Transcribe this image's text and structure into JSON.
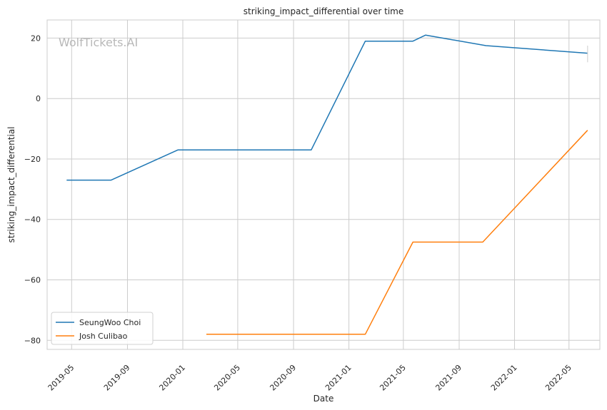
{
  "chart_data": {
    "type": "line",
    "title": "striking_impact_differential over time",
    "xlabel": "Date",
    "ylabel": "striking_impact_differential",
    "watermark": "WolfTickets.AI",
    "x_ticks": [
      "2019-05",
      "2019-09",
      "2020-01",
      "2020-05",
      "2020-09",
      "2021-01",
      "2021-05",
      "2021-09",
      "2022-01",
      "2022-05"
    ],
    "y_ticks": [
      20,
      0,
      -20,
      -40,
      -60,
      -80
    ],
    "y_tick_labels": [
      "20",
      "0",
      "−20",
      "−40",
      "−60",
      "−80"
    ],
    "xlim": [
      "2019-03-08",
      "2022-07-08"
    ],
    "ylim": [
      -83,
      26
    ],
    "grid": true,
    "legend_position": "lower-left",
    "series": [
      {
        "name": "SeungWoo Choi",
        "color": "#1f77b4",
        "points": [
          {
            "x": "2019-04-20",
            "y": -27
          },
          {
            "x": "2019-07-27",
            "y": -27
          },
          {
            "x": "2019-12-21",
            "y": -17
          },
          {
            "x": "2020-10-10",
            "y": -17
          },
          {
            "x": "2021-02-06",
            "y": 19
          },
          {
            "x": "2021-05-22",
            "y": 19
          },
          {
            "x": "2021-06-19",
            "y": 21
          },
          {
            "x": "2021-10-30",
            "y": 17.5
          },
          {
            "x": "2022-06-11",
            "y": 15
          }
        ],
        "error_bar": {
          "x": "2022-06-11",
          "low": 12,
          "high": 17.5
        }
      },
      {
        "name": "Josh Culibao",
        "color": "#ff7f0e",
        "points": [
          {
            "x": "2020-02-22",
            "y": -78
          },
          {
            "x": "2021-02-06",
            "y": -78
          },
          {
            "x": "2021-05-22",
            "y": -47.5
          },
          {
            "x": "2021-10-23",
            "y": -47.5
          },
          {
            "x": "2022-06-11",
            "y": -10.5
          }
        ]
      }
    ]
  }
}
